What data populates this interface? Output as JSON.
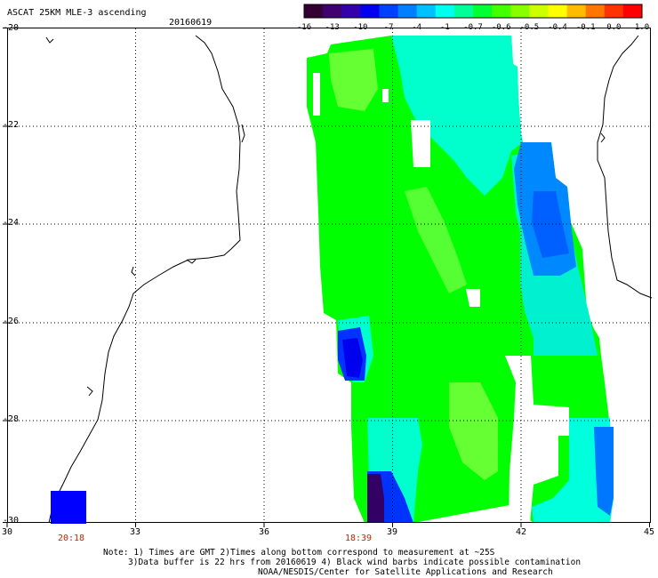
{
  "header": {
    "title": "ASCAT 25KM MLE-3 ascending",
    "date": "20160619"
  },
  "colorbar": {
    "labels": [
      "-16",
      "-13",
      "-10",
      "-7",
      "-4",
      "-1",
      "-0.7",
      "-0.6",
      "-0.5",
      "-0.4",
      "-0.1",
      "0.0",
      "1.0"
    ],
    "colors": [
      "#330033",
      "#400070",
      "#3300aa",
      "#0000ee",
      "#0040ff",
      "#0080ff",
      "#00c0ff",
      "#00ffee",
      "#00ff99",
      "#00ff33",
      "#44ff00",
      "#88ff00",
      "#ccff00",
      "#ffff00",
      "#ffbb00",
      "#ff7700",
      "#ff3300",
      "#ff0000"
    ]
  },
  "axes": {
    "y_labels": [
      "-20",
      "-22",
      "-24",
      "-26",
      "-28",
      "-30"
    ],
    "x_labels": [
      "30",
      "33",
      "36",
      "39",
      "42",
      "45"
    ]
  },
  "times": [
    "20:18",
    "18:39"
  ],
  "notes": {
    "line1": "Note: 1) Times are GMT 2)Times along bottom correspond to measurement at ~25S",
    "line2": "3)Data buffer is 22 hrs from 20160619 4) Black wind barbs indicate possible contamination",
    "line3": "NOAA/NESDIS/Center for Satellite Applications and Research"
  },
  "colors": {
    "green": "#00ff00",
    "light_green": "#66ff33",
    "cyan": "#00ffcc",
    "blue": "#0066ff",
    "dark_blue": "#0000ee",
    "purple": "#330066"
  }
}
